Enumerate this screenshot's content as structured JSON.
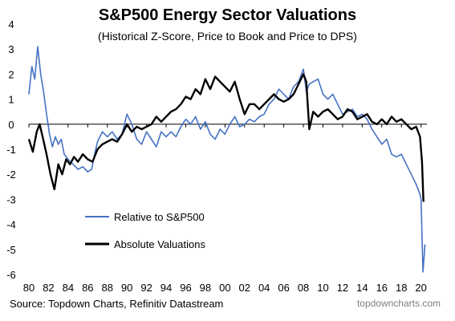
{
  "title": "S&P500 Energy Sector Valuations",
  "subtitle": "(Historical Z-Score, Price to Book and Price to DPS)",
  "source": "Source: Topdown Charts, Refinitiv Datastream",
  "brand": "topdowncharts.com",
  "chart_data": {
    "type": "line",
    "title": "S&P500 Energy Sector Valuations",
    "subtitle": "(Historical Z-Score, Price to Book and Price to DPS)",
    "xlabel": "",
    "ylabel": "",
    "xlim": [
      1980,
      2020.6
    ],
    "ylim": [
      -6,
      4
    ],
    "x_ticks": [
      1980,
      1982,
      1984,
      1986,
      1988,
      1990,
      1992,
      1994,
      1996,
      1998,
      2000,
      2002,
      2004,
      2006,
      2008,
      2010,
      2012,
      2014,
      2016,
      2018,
      2020
    ],
    "x_tick_labels": [
      "80",
      "82",
      "84",
      "86",
      "88",
      "90",
      "92",
      "94",
      "96",
      "98",
      "00",
      "02",
      "04",
      "06",
      "08",
      "10",
      "12",
      "14",
      "16",
      "18",
      "20"
    ],
    "y_ticks": [
      4,
      3,
      2,
      1,
      0,
      -1,
      -2,
      -3,
      -4,
      -5,
      -6
    ],
    "legend_position": "lower-left",
    "grid": false,
    "series": [
      {
        "name": "Relative to S&P500",
        "color": "#4472C4",
        "points": [
          [
            1980.0,
            1.2
          ],
          [
            1980.3,
            2.3
          ],
          [
            1980.6,
            1.8
          ],
          [
            1980.9,
            3.1
          ],
          [
            1981.2,
            2.0
          ],
          [
            1981.5,
            1.3
          ],
          [
            1981.8,
            0.4
          ],
          [
            1982.1,
            -0.4
          ],
          [
            1982.4,
            -0.9
          ],
          [
            1982.7,
            -0.5
          ],
          [
            1983.0,
            -0.8
          ],
          [
            1983.3,
            -0.6
          ],
          [
            1983.6,
            -1.2
          ],
          [
            1984.0,
            -1.4
          ],
          [
            1984.5,
            -1.6
          ],
          [
            1985.0,
            -1.8
          ],
          [
            1985.5,
            -1.7
          ],
          [
            1986.0,
            -1.9
          ],
          [
            1986.4,
            -1.8
          ],
          [
            1986.7,
            -1.2
          ],
          [
            1987.0,
            -0.7
          ],
          [
            1987.5,
            -0.3
          ],
          [
            1988.0,
            -0.5
          ],
          [
            1988.5,
            -0.3
          ],
          [
            1989.0,
            -0.6
          ],
          [
            1989.5,
            -0.4
          ],
          [
            1990.0,
            0.4
          ],
          [
            1990.5,
            0.0
          ],
          [
            1991.0,
            -0.6
          ],
          [
            1991.5,
            -0.8
          ],
          [
            1992.0,
            -0.3
          ],
          [
            1992.5,
            -0.6
          ],
          [
            1993.0,
            -0.9
          ],
          [
            1993.5,
            -0.3
          ],
          [
            1994.0,
            -0.5
          ],
          [
            1994.5,
            -0.3
          ],
          [
            1995.0,
            -0.5
          ],
          [
            1995.5,
            -0.1
          ],
          [
            1996.0,
            0.2
          ],
          [
            1996.5,
            0.0
          ],
          [
            1997.0,
            0.3
          ],
          [
            1997.5,
            -0.2
          ],
          [
            1998.0,
            0.1
          ],
          [
            1998.5,
            -0.4
          ],
          [
            1999.0,
            -0.6
          ],
          [
            1999.5,
            -0.2
          ],
          [
            2000.0,
            -0.4
          ],
          [
            2000.5,
            0.0
          ],
          [
            2001.0,
            0.3
          ],
          [
            2001.5,
            -0.1
          ],
          [
            2002.0,
            0.0
          ],
          [
            2002.5,
            0.2
          ],
          [
            2003.0,
            0.1
          ],
          [
            2003.5,
            0.3
          ],
          [
            2004.0,
            0.4
          ],
          [
            2004.5,
            0.8
          ],
          [
            2005.0,
            1.0
          ],
          [
            2005.5,
            1.4
          ],
          [
            2006.0,
            1.2
          ],
          [
            2006.5,
            1.0
          ],
          [
            2007.0,
            1.5
          ],
          [
            2007.5,
            1.7
          ],
          [
            2008.0,
            2.2
          ],
          [
            2008.3,
            1.3
          ],
          [
            2008.6,
            1.6
          ],
          [
            2009.0,
            1.7
          ],
          [
            2009.5,
            1.8
          ],
          [
            2010.0,
            1.2
          ],
          [
            2010.5,
            1.0
          ],
          [
            2011.0,
            1.2
          ],
          [
            2011.5,
            0.8
          ],
          [
            2012.0,
            0.4
          ],
          [
            2012.5,
            0.5
          ],
          [
            2013.0,
            0.6
          ],
          [
            2013.5,
            0.3
          ],
          [
            2014.0,
            0.4
          ],
          [
            2014.5,
            0.2
          ],
          [
            2015.0,
            -0.2
          ],
          [
            2015.5,
            -0.5
          ],
          [
            2016.0,
            -0.8
          ],
          [
            2016.5,
            -0.6
          ],
          [
            2017.0,
            -1.2
          ],
          [
            2017.5,
            -1.3
          ],
          [
            2018.0,
            -1.2
          ],
          [
            2018.5,
            -1.6
          ],
          [
            2019.0,
            -2.0
          ],
          [
            2019.5,
            -2.4
          ],
          [
            2019.9,
            -2.8
          ],
          [
            2020.0,
            -3.0
          ],
          [
            2020.2,
            -5.9
          ],
          [
            2020.4,
            -4.8
          ]
        ]
      },
      {
        "name": "Absolute Valuations",
        "color": "#000000",
        "points": [
          [
            1980.0,
            -0.6
          ],
          [
            1980.4,
            -1.1
          ],
          [
            1980.8,
            -0.3
          ],
          [
            1981.1,
            0.0
          ],
          [
            1981.4,
            -0.5
          ],
          [
            1981.8,
            -1.2
          ],
          [
            1982.2,
            -2.0
          ],
          [
            1982.6,
            -2.6
          ],
          [
            1983.0,
            -1.6
          ],
          [
            1983.4,
            -2.0
          ],
          [
            1983.8,
            -1.4
          ],
          [
            1984.2,
            -1.6
          ],
          [
            1984.6,
            -1.3
          ],
          [
            1985.0,
            -1.5
          ],
          [
            1985.5,
            -1.2
          ],
          [
            1986.0,
            -1.4
          ],
          [
            1986.5,
            -1.5
          ],
          [
            1987.0,
            -1.0
          ],
          [
            1987.5,
            -0.8
          ],
          [
            1988.0,
            -0.7
          ],
          [
            1988.5,
            -0.6
          ],
          [
            1989.0,
            -0.7
          ],
          [
            1989.5,
            -0.4
          ],
          [
            1990.0,
            0.0
          ],
          [
            1990.5,
            -0.3
          ],
          [
            1991.0,
            -0.1
          ],
          [
            1991.5,
            -0.2
          ],
          [
            1992.0,
            -0.1
          ],
          [
            1992.5,
            0.0
          ],
          [
            1993.0,
            0.3
          ],
          [
            1993.5,
            0.1
          ],
          [
            1994.0,
            0.3
          ],
          [
            1994.5,
            0.5
          ],
          [
            1995.0,
            0.6
          ],
          [
            1995.5,
            0.8
          ],
          [
            1996.0,
            1.1
          ],
          [
            1996.5,
            1.0
          ],
          [
            1997.0,
            1.4
          ],
          [
            1997.5,
            1.2
          ],
          [
            1998.0,
            1.8
          ],
          [
            1998.5,
            1.4
          ],
          [
            1999.0,
            1.9
          ],
          [
            1999.5,
            1.7
          ],
          [
            2000.0,
            1.5
          ],
          [
            2000.5,
            1.3
          ],
          [
            2001.0,
            1.7
          ],
          [
            2001.5,
            1.0
          ],
          [
            2002.0,
            0.4
          ],
          [
            2002.5,
            0.8
          ],
          [
            2003.0,
            0.8
          ],
          [
            2003.5,
            0.6
          ],
          [
            2004.0,
            0.8
          ],
          [
            2004.5,
            1.0
          ],
          [
            2005.0,
            1.2
          ],
          [
            2005.5,
            1.0
          ],
          [
            2006.0,
            0.9
          ],
          [
            2006.5,
            1.0
          ],
          [
            2007.0,
            1.2
          ],
          [
            2007.5,
            1.6
          ],
          [
            2008.0,
            2.0
          ],
          [
            2008.3,
            1.7
          ],
          [
            2008.6,
            -0.2
          ],
          [
            2009.0,
            0.5
          ],
          [
            2009.5,
            0.3
          ],
          [
            2010.0,
            0.5
          ],
          [
            2010.5,
            0.6
          ],
          [
            2011.0,
            0.4
          ],
          [
            2011.5,
            0.2
          ],
          [
            2012.0,
            0.3
          ],
          [
            2012.5,
            0.6
          ],
          [
            2013.0,
            0.5
          ],
          [
            2013.5,
            0.2
          ],
          [
            2014.0,
            0.3
          ],
          [
            2014.5,
            0.4
          ],
          [
            2015.0,
            0.1
          ],
          [
            2015.5,
            0.0
          ],
          [
            2016.0,
            0.2
          ],
          [
            2016.5,
            0.0
          ],
          [
            2017.0,
            0.3
          ],
          [
            2017.5,
            0.1
          ],
          [
            2018.0,
            0.2
          ],
          [
            2018.5,
            0.0
          ],
          [
            2019.0,
            -0.2
          ],
          [
            2019.5,
            -0.1
          ],
          [
            2019.9,
            -0.5
          ],
          [
            2020.1,
            -1.5
          ],
          [
            2020.25,
            -3.1
          ]
        ]
      }
    ]
  }
}
